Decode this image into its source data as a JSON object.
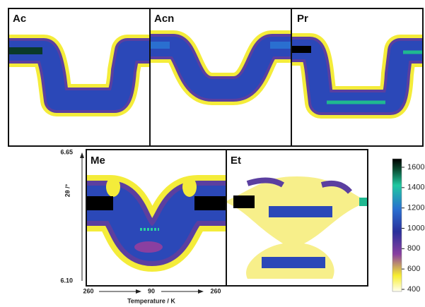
{
  "panels": [
    {
      "label": "Ac"
    },
    {
      "label": "Acn"
    },
    {
      "label": "Pr"
    },
    {
      "label": "Me"
    },
    {
      "label": "Et"
    }
  ],
  "y_axis": {
    "label": "2θ /°",
    "top": "6.65",
    "bottom": "6.10"
  },
  "x_axis": {
    "label": "Temperature / K",
    "ticks": [
      "260",
      "90",
      "260"
    ]
  },
  "colorbar": {
    "ticks": [
      400,
      600,
      800,
      1000,
      1200,
      1400,
      1600
    ]
  }
}
